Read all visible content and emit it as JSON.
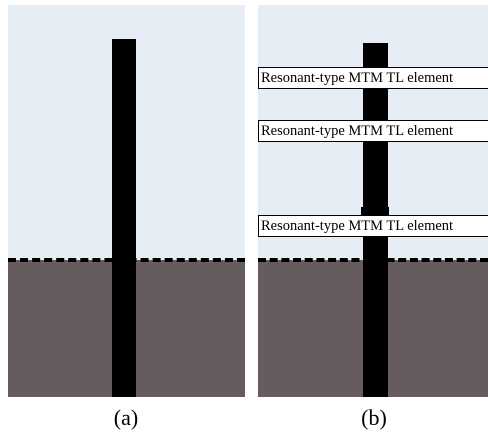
{
  "panel_a": {
    "caption": "(a)"
  },
  "panel_b": {
    "caption": "(b)",
    "elements": [
      {
        "label": "Resonant-type MTM TL element"
      },
      {
        "label": "Resonant-type MTM TL element"
      },
      {
        "label": "Resonant-type MTM TL element"
      }
    ]
  },
  "colors": {
    "sky": "#e6edf5",
    "ground": "#665b5e",
    "conductor": "#000000",
    "boundary": "#000000"
  }
}
